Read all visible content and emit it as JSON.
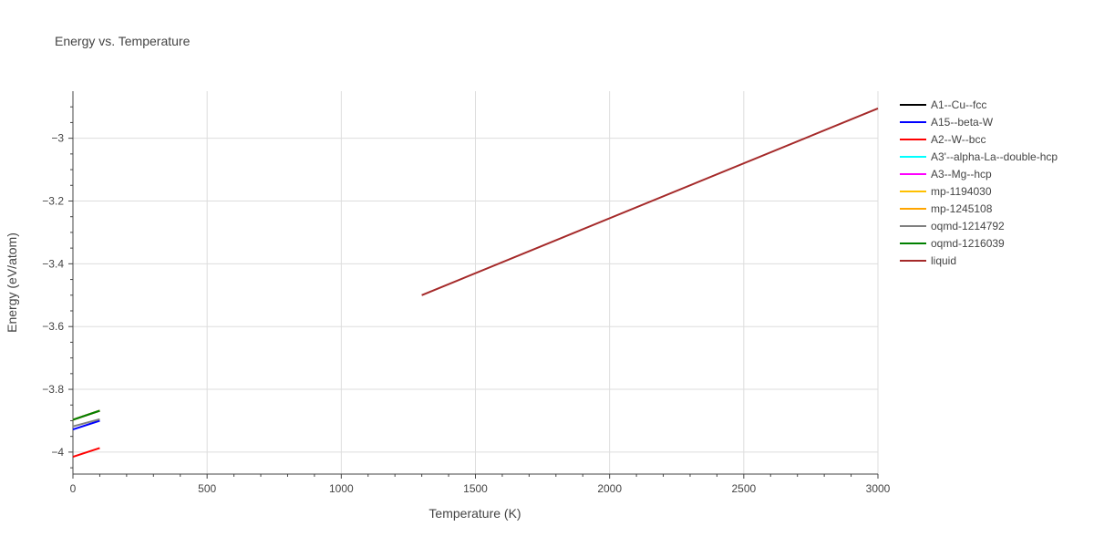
{
  "chart_data": {
    "type": "line",
    "title": "Energy vs. Temperature",
    "xlabel": "Temperature (K)",
    "ylabel": "Energy (eV/atom)",
    "xlim": [
      0,
      3000
    ],
    "ylim": [
      -4.07,
      -2.85
    ],
    "x_ticks": [
      0,
      500,
      1000,
      1500,
      2000,
      2500,
      3000
    ],
    "y_ticks": [
      -4,
      -3.8,
      -3.6,
      -3.4,
      -3.2,
      -3
    ],
    "x_tick_labels": [
      "0",
      "500",
      "1000",
      "1500",
      "2000",
      "2500",
      "3000"
    ],
    "y_tick_labels": [
      "−4",
      "−3.8",
      "−3.6",
      "−3.4",
      "−3.2",
      "−3"
    ],
    "grid": true,
    "legend_position": "right",
    "series": [
      {
        "name": "A1--Cu--fcc",
        "color": "#000000",
        "x": [
          0,
          100
        ],
        "y": [
          -3.897,
          -3.868
        ]
      },
      {
        "name": "A15--beta-W",
        "color": "#0000ff",
        "x": [
          0,
          100
        ],
        "y": [
          -3.928,
          -3.9
        ]
      },
      {
        "name": "A2--W--bcc",
        "color": "#ff0000",
        "x": [
          0,
          100
        ],
        "y": [
          -4.015,
          -3.987
        ]
      },
      {
        "name": "A3'--alpha-La--double-hcp",
        "color": "#00ffff",
        "x": [
          0,
          100
        ],
        "y": [
          -3.897,
          -3.868
        ]
      },
      {
        "name": "A3--Mg--hcp",
        "color": "#ff00ff",
        "x": [
          0,
          100
        ],
        "y": [
          -3.897,
          -3.868
        ]
      },
      {
        "name": "mp-1194030",
        "color": "#ffc000",
        "x": [
          0,
          100
        ],
        "y": [
          -3.897,
          -3.868
        ]
      },
      {
        "name": "mp-1245108",
        "color": "#ffa500",
        "x": [
          0,
          100
        ],
        "y": [
          -3.897,
          -3.868
        ]
      },
      {
        "name": "oqmd-1214792",
        "color": "#808080",
        "x": [
          0,
          100
        ],
        "y": [
          -3.918,
          -3.895
        ]
      },
      {
        "name": "oqmd-1216039",
        "color": "#008000",
        "x": [
          0,
          100
        ],
        "y": [
          -3.897,
          -3.868
        ]
      },
      {
        "name": "liquid",
        "color": "#a52a2a",
        "x": [
          1300,
          3000
        ],
        "y": [
          -3.5,
          -2.905
        ]
      }
    ]
  }
}
